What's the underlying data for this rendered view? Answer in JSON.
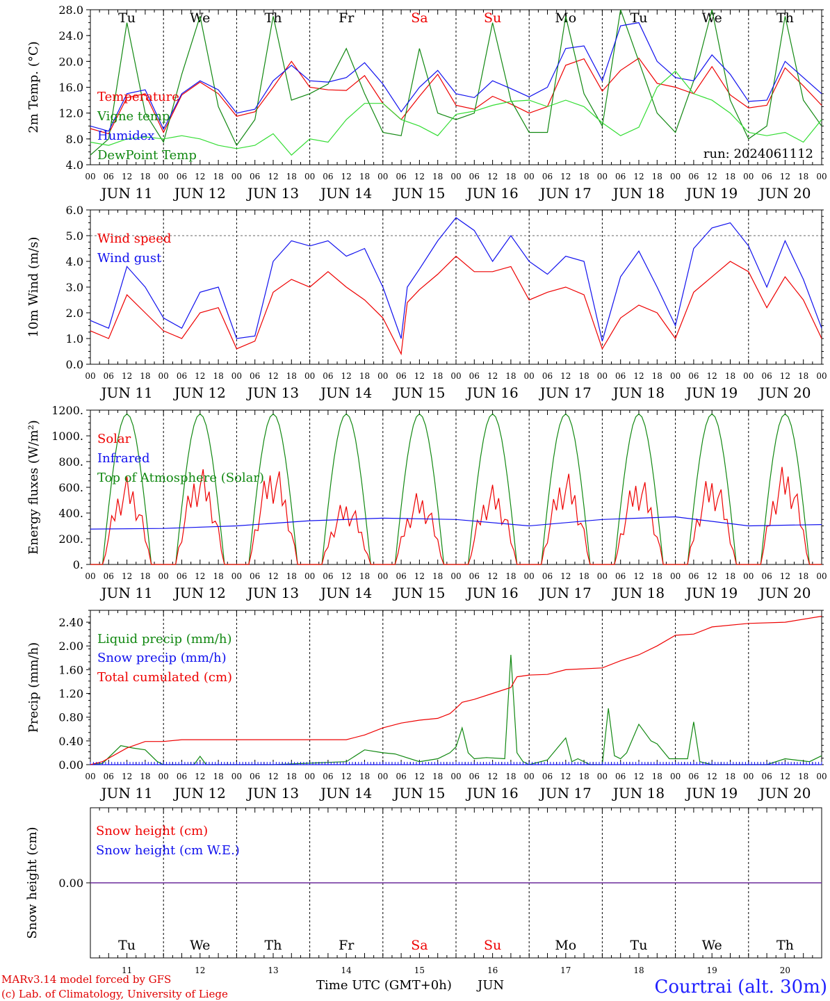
{
  "run_label": "run: 2024061112",
  "credit_lines": [
    "MARv3.14 model forced by GFS",
    "(c) Lab. of Climatology, University of Liege"
  ],
  "location_title": "Courtrai (alt. 30m)",
  "x_axis_title": "Time UTC (GMT+0h)",
  "month_label": "JUN",
  "day_letters": [
    "Tu",
    "We",
    "Th",
    "Fr",
    "Sa",
    "Su",
    "Mo",
    "Tu",
    "We",
    "Th"
  ],
  "weekend_days": [
    4,
    5
  ],
  "day_labels": [
    "JUN 11",
    "JUN 12",
    "JUN 13",
    "JUN 14",
    "JUN 15",
    "JUN 16",
    "JUN 17",
    "JUN 18",
    "JUN 19",
    "JUN 20"
  ],
  "day_numbers": [
    "11",
    "12",
    "13",
    "14",
    "15",
    "16",
    "17",
    "18",
    "19",
    "20"
  ],
  "hour_labels": [
    "00",
    "06",
    "12",
    "18"
  ],
  "colors": {
    "red": "#ee0000",
    "green": "#118811",
    "blue": "#1010ee",
    "lightgreen": "#33dd33",
    "purple": "#6a2a9a"
  },
  "chart_data": [
    {
      "type": "line",
      "ylabel": "2m Temp. (°C)",
      "ylim": [
        4,
        28
      ],
      "yticks": [
        "4.0",
        "8.0",
        "12.0",
        "16.0",
        "20.0",
        "24.0",
        "28.0"
      ],
      "x_unit": "hours since JUN 11 00 UTC",
      "legend": [
        "Temperature",
        "Vigne temp",
        "Humidex",
        "DewPoint Temp"
      ],
      "series": [
        {
          "name": "Temperature",
          "color": "red",
          "x": [
            0,
            6,
            12,
            18,
            24,
            30,
            36,
            42,
            48,
            54,
            60,
            66,
            72,
            78,
            84,
            90,
            96,
            102,
            108,
            114,
            120,
            126,
            132,
            138,
            144,
            150,
            156,
            162,
            168,
            174,
            180,
            186,
            192,
            198,
            204,
            210,
            216,
            222,
            228,
            234,
            240
          ],
          "y": [
            9.6,
            8.8,
            14.4,
            15.0,
            9.0,
            14.8,
            16.8,
            15.0,
            11.5,
            12.2,
            16.0,
            20.0,
            16.0,
            15.6,
            15.5,
            17.8,
            13.5,
            11.0,
            14.6,
            18.0,
            13.2,
            12.6,
            14.6,
            13.4,
            12.0,
            13.0,
            19.4,
            20.4,
            15.4,
            18.6,
            20.5,
            16.6,
            16.0,
            15.0,
            19.2,
            14.8,
            12.8,
            13.2,
            19.0,
            16.2,
            13.2
          ]
        },
        {
          "name": "Vigne temp",
          "color": "green",
          "x": [
            0,
            6,
            12,
            18,
            24,
            30,
            36,
            42,
            48,
            54,
            60,
            66,
            72,
            78,
            84,
            90,
            96,
            102,
            108,
            114,
            120,
            126,
            132,
            138,
            144,
            150,
            156,
            162,
            168,
            174,
            180,
            186,
            192,
            198,
            204,
            210,
            216,
            222,
            228,
            234,
            240
          ],
          "y": [
            5.5,
            8.0,
            26.0,
            12.0,
            7.5,
            18.0,
            27.0,
            13.0,
            7.0,
            11.0,
            27.0,
            14.0,
            15.0,
            16.5,
            22.0,
            15.0,
            9.0,
            8.5,
            22.0,
            12.0,
            11.0,
            12.0,
            26.0,
            14.0,
            9.0,
            9.0,
            27.0,
            15.0,
            10.0,
            28.0,
            20.0,
            12.0,
            9.0,
            17.0,
            28.0,
            14.0,
            8.0,
            10.0,
            27.0,
            14.0,
            10.0
          ]
        },
        {
          "name": "Humidex",
          "color": "blue",
          "x": [
            0,
            6,
            12,
            18,
            24,
            30,
            36,
            42,
            48,
            54,
            60,
            66,
            72,
            78,
            84,
            90,
            96,
            102,
            108,
            114,
            120,
            126,
            132,
            138,
            144,
            150,
            156,
            162,
            168,
            174,
            180,
            186,
            192,
            198,
            204,
            210,
            216,
            222,
            228,
            234,
            240
          ],
          "y": [
            10.0,
            9.2,
            15.0,
            15.6,
            9.5,
            15.0,
            17.0,
            15.6,
            12.0,
            12.6,
            17.0,
            19.4,
            17.0,
            16.8,
            17.5,
            19.8,
            16.5,
            12.2,
            16.0,
            18.6,
            15.0,
            14.4,
            17.0,
            15.8,
            14.5,
            16.0,
            22.0,
            22.4,
            17.0,
            25.5,
            26.0,
            20.0,
            17.5,
            17.0,
            21.0,
            18.0,
            13.8,
            14.0,
            20.0,
            17.5,
            15.0
          ]
        },
        {
          "name": "DewPoint Temp",
          "color": "lightgreen",
          "x": [
            0,
            6,
            12,
            18,
            24,
            30,
            36,
            42,
            48,
            54,
            60,
            66,
            72,
            78,
            84,
            90,
            96,
            102,
            108,
            114,
            120,
            126,
            132,
            138,
            144,
            150,
            156,
            162,
            168,
            174,
            180,
            186,
            192,
            198,
            204,
            210,
            216,
            222,
            228,
            234,
            240
          ],
          "y": [
            7.5,
            7.0,
            8.0,
            8.3,
            8.0,
            8.5,
            8.0,
            7.0,
            6.5,
            7.0,
            8.8,
            5.5,
            8.0,
            7.5,
            11.0,
            13.5,
            13.5,
            11.0,
            10.0,
            8.5,
            11.8,
            12.3,
            13.2,
            13.8,
            14.0,
            13.0,
            14.0,
            13.0,
            10.5,
            8.5,
            9.8,
            16.0,
            18.5,
            15.0,
            14.0,
            12.0,
            9.0,
            8.5,
            9.0,
            7.5,
            11.0
          ]
        }
      ]
    },
    {
      "type": "line",
      "ylabel": "10m Wind (m/s)",
      "ylim": [
        0,
        6
      ],
      "yticks": [
        "0.0",
        "1.0",
        "2.0",
        "3.0",
        "4.0",
        "5.0",
        "6.0"
      ],
      "refline": 5.0,
      "legend": [
        "Wind speed",
        "Wind gust"
      ],
      "series": [
        {
          "name": "Wind speed",
          "color": "red",
          "x": [
            0,
            6,
            12,
            18,
            24,
            30,
            36,
            42,
            48,
            54,
            60,
            66,
            72,
            78,
            84,
            90,
            96,
            102,
            104,
            108,
            114,
            120,
            126,
            132,
            138,
            144,
            150,
            156,
            162,
            168,
            174,
            180,
            186,
            192,
            198,
            204,
            210,
            216,
            222,
            228,
            234,
            240
          ],
          "y": [
            1.3,
            1.0,
            2.7,
            2.0,
            1.3,
            1.0,
            2.0,
            2.2,
            0.6,
            0.9,
            2.8,
            3.3,
            3.0,
            3.6,
            3.0,
            2.5,
            1.8,
            0.4,
            2.4,
            2.9,
            3.5,
            4.2,
            3.6,
            3.6,
            3.8,
            2.5,
            2.8,
            3.0,
            2.7,
            0.6,
            1.8,
            2.3,
            2.0,
            1.0,
            2.8,
            3.4,
            4.0,
            3.6,
            2.2,
            3.4,
            2.5,
            1.0
          ]
        },
        {
          "name": "Wind gust",
          "color": "blue",
          "x": [
            0,
            6,
            12,
            18,
            24,
            30,
            36,
            42,
            48,
            54,
            60,
            66,
            72,
            78,
            84,
            90,
            96,
            102,
            104,
            108,
            114,
            120,
            126,
            132,
            138,
            144,
            150,
            156,
            162,
            168,
            174,
            180,
            186,
            192,
            198,
            204,
            210,
            216,
            222,
            228,
            234,
            240
          ],
          "y": [
            1.7,
            1.4,
            3.8,
            3.0,
            1.8,
            1.4,
            2.8,
            3.0,
            1.0,
            1.1,
            4.0,
            4.8,
            4.6,
            4.8,
            4.2,
            4.5,
            3.0,
            1.0,
            3.0,
            3.7,
            4.8,
            5.7,
            5.2,
            4.0,
            5.0,
            4.0,
            3.5,
            4.2,
            4.0,
            0.9,
            3.4,
            4.4,
            3.0,
            1.5,
            4.5,
            5.3,
            5.5,
            4.6,
            3.0,
            4.8,
            3.3,
            1.4
          ]
        }
      ]
    },
    {
      "type": "line",
      "ylabel": "Energy fluxes (W/m²)",
      "ylim": [
        0,
        1200
      ],
      "yticks": [
        "0.",
        "200.",
        "400.",
        "600.",
        "800.",
        "1000.",
        "1200."
      ],
      "legend": [
        "Solar",
        "Infrared",
        "Top of Atmosphere (Solar)"
      ],
      "toa_peak": 1170,
      "solar_peaks": [
        750,
        830,
        860,
        550,
        620,
        680,
        790,
        760,
        770,
        850
      ],
      "infrared": {
        "x": [
          0,
          24,
          48,
          72,
          96,
          120,
          144,
          168,
          192,
          216,
          240
        ],
        "y": [
          275,
          280,
          300,
          340,
          360,
          350,
          300,
          350,
          370,
          300,
          310
        ]
      }
    },
    {
      "type": "line",
      "ylabel": "Precip (mm/h)",
      "ylim": [
        0,
        2.6
      ],
      "yticks": [
        "0.00",
        "0.40",
        "0.80",
        "1.20",
        "1.60",
        "2.00",
        "2.40"
      ],
      "legend": [
        "Liquid precip (mm/h)",
        "Snow precip (mm/h)",
        "Total cumulated (cm)"
      ],
      "series": [
        {
          "name": "Liquid precip (mm/h)",
          "color": "green",
          "x": [
            0,
            4,
            10,
            14,
            18,
            22,
            24,
            34,
            36,
            38,
            60,
            84,
            90,
            96,
            100,
            108,
            114,
            118,
            120,
            122,
            124,
            126,
            130,
            136,
            138,
            140,
            142,
            144,
            150,
            156,
            158,
            160,
            164,
            168,
            170,
            172,
            174,
            176,
            180,
            184,
            186,
            190,
            196,
            198,
            200,
            204,
            210,
            222,
            228,
            236,
            240
          ],
          "y": [
            0,
            0.02,
            0.32,
            0.28,
            0.25,
            0.05,
            0,
            0,
            0.14,
            0,
            0,
            0.05,
            0.25,
            0.2,
            0.18,
            0.05,
            0.1,
            0.2,
            0.3,
            0.62,
            0.2,
            0.1,
            0.12,
            0.1,
            1.85,
            0.2,
            0.05,
            0,
            0.08,
            0.45,
            0.05,
            0.1,
            0,
            0,
            0.95,
            0.15,
            0.1,
            0.2,
            0.68,
            0.4,
            0.35,
            0.1,
            0.1,
            0.72,
            0.05,
            0,
            0,
            0,
            0.1,
            0.05,
            0.15
          ]
        },
        {
          "name": "Snow precip (mm/h)",
          "color": "blue",
          "x": [
            0,
            240
          ],
          "y": [
            0,
            0
          ]
        },
        {
          "name": "Total cumulated (cm)",
          "color": "red",
          "x": [
            0,
            4,
            12,
            18,
            24,
            30,
            60,
            84,
            90,
            96,
            102,
            108,
            114,
            118,
            120,
            122,
            126,
            132,
            138,
            140,
            144,
            150,
            156,
            168,
            174,
            180,
            186,
            192,
            198,
            204,
            216,
            228,
            240
          ],
          "y": [
            0,
            0.05,
            0.28,
            0.39,
            0.39,
            0.42,
            0.42,
            0.42,
            0.5,
            0.62,
            0.7,
            0.75,
            0.78,
            0.86,
            0.95,
            1.05,
            1.1,
            1.2,
            1.3,
            1.48,
            1.51,
            1.52,
            1.6,
            1.63,
            1.75,
            1.85,
            2.0,
            2.18,
            2.2,
            2.32,
            2.38,
            2.4,
            2.5
          ]
        }
      ]
    },
    {
      "type": "line",
      "ylabel": "Snow height (cm)",
      "yticks": [
        "0.00"
      ],
      "legend": [
        "Snow height (cm)",
        "Snow height (cm W.E.)"
      ],
      "series": [
        {
          "name": "Snow height (cm)",
          "color": "red",
          "x": [
            0,
            240
          ],
          "y": [
            0,
            0
          ]
        },
        {
          "name": "Snow height (cm W.E.)",
          "color": "blue",
          "x": [
            0,
            240
          ],
          "y": [
            0,
            0
          ]
        }
      ]
    }
  ]
}
